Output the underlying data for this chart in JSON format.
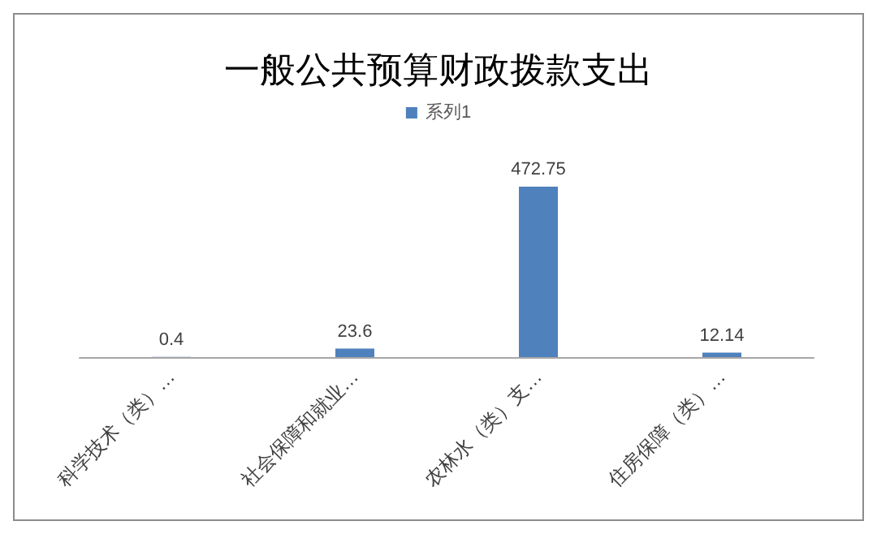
{
  "chart_data": {
    "type": "bar",
    "title": "一般公共预算财政拨款支出",
    "categories": [
      "科学技术（类）…",
      "社会保障和就业…",
      "农林水（类）支…",
      "住房保障（类）…"
    ],
    "series": [
      {
        "name": "系列1",
        "color": "#4f81bd",
        "values": [
          0.4,
          23.6,
          472.75,
          12.14
        ]
      }
    ],
    "data_labels": true,
    "legend": "top"
  }
}
